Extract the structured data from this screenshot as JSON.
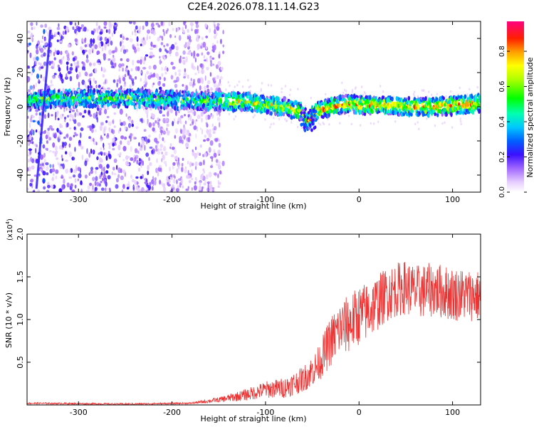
{
  "title": "C2E4.2026.078.11.14.G23",
  "chart_data": [
    {
      "type": "heatmap",
      "xlabel": "Height of straight line (km)",
      "ylabel": "Frequency (Hz)",
      "xlim": [
        -355,
        130
      ],
      "ylim": [
        -50,
        50
      ],
      "xticks": [
        -300,
        -200,
        -100,
        0,
        100
      ],
      "yticks": [
        -40,
        -20,
        0,
        20,
        40
      ],
      "colorbar": {
        "label": "Normalized spectral amplitude",
        "range": [
          0,
          0.97
        ],
        "ticks": [
          0.0,
          0.2,
          0.4,
          0.6,
          0.8
        ],
        "stops": [
          "#ffffff",
          "#d9b8ff",
          "#8a2be2",
          "#3a10ff",
          "#0050ff",
          "#00c0ff",
          "#00ffb0",
          "#00ff00",
          "#b0ff00",
          "#ffff00",
          "#ff8000",
          "#ff0000",
          "#ff0080"
        ]
      },
      "ridge": {
        "description": "signal centroid frequency vs height",
        "x": [
          -355,
          -300,
          -250,
          -200,
          -150,
          -120,
          -100,
          -80,
          -60,
          -55,
          -45,
          -30,
          -10,
          0,
          20,
          50,
          80,
          110,
          130
        ],
        "y": [
          4,
          5,
          5,
          4,
          3,
          3,
          1,
          0,
          -3,
          -8,
          -3,
          0,
          2,
          1,
          1,
          0,
          0,
          1,
          2
        ]
      },
      "noise_region_x": [
        -355,
        -145
      ],
      "streak": {
        "description": "diagonal trace",
        "x": [
          -330,
          -345
        ],
        "y": [
          45,
          -48
        ]
      }
    },
    {
      "type": "line",
      "xlabel": "Height of straight line (km)",
      "ylabel": "SNR (10 * v/v)",
      "scale_label": "(x10",
      "scale_exp": "4",
      "xlim": [
        -355,
        130
      ],
      "ylim": [
        0,
        2.0
      ],
      "xticks": [
        -300,
        -200,
        -100,
        0,
        100
      ],
      "yticks": [
        0.5,
        1.0,
        1.5,
        2.0
      ],
      "ytick_labels": [
        "0.5",
        "1.0",
        "1.5",
        "2.0"
      ],
      "color": "#ee3333",
      "series": [
        {
          "name": "SNR",
          "x": [
            -355,
            -250,
            -180,
            -150,
            -120,
            -100,
            -80,
            -60,
            -45,
            -30,
            -20,
            -10,
            0,
            10,
            20,
            30,
            40,
            50,
            60,
            80,
            100,
            130
          ],
          "y": [
            0.02,
            0.01,
            0.02,
            0.06,
            0.12,
            0.18,
            0.2,
            0.3,
            0.45,
            0.75,
            0.9,
            0.95,
            1.05,
            1.1,
            1.2,
            1.3,
            1.35,
            1.38,
            1.32,
            1.35,
            1.3,
            1.28
          ],
          "spread": [
            0.01,
            0.01,
            0.01,
            0.03,
            0.07,
            0.1,
            0.12,
            0.15,
            0.2,
            0.3,
            0.32,
            0.35,
            0.35,
            0.35,
            0.33,
            0.32,
            0.32,
            0.32,
            0.32,
            0.32,
            0.32,
            0.3
          ]
        }
      ]
    }
  ]
}
